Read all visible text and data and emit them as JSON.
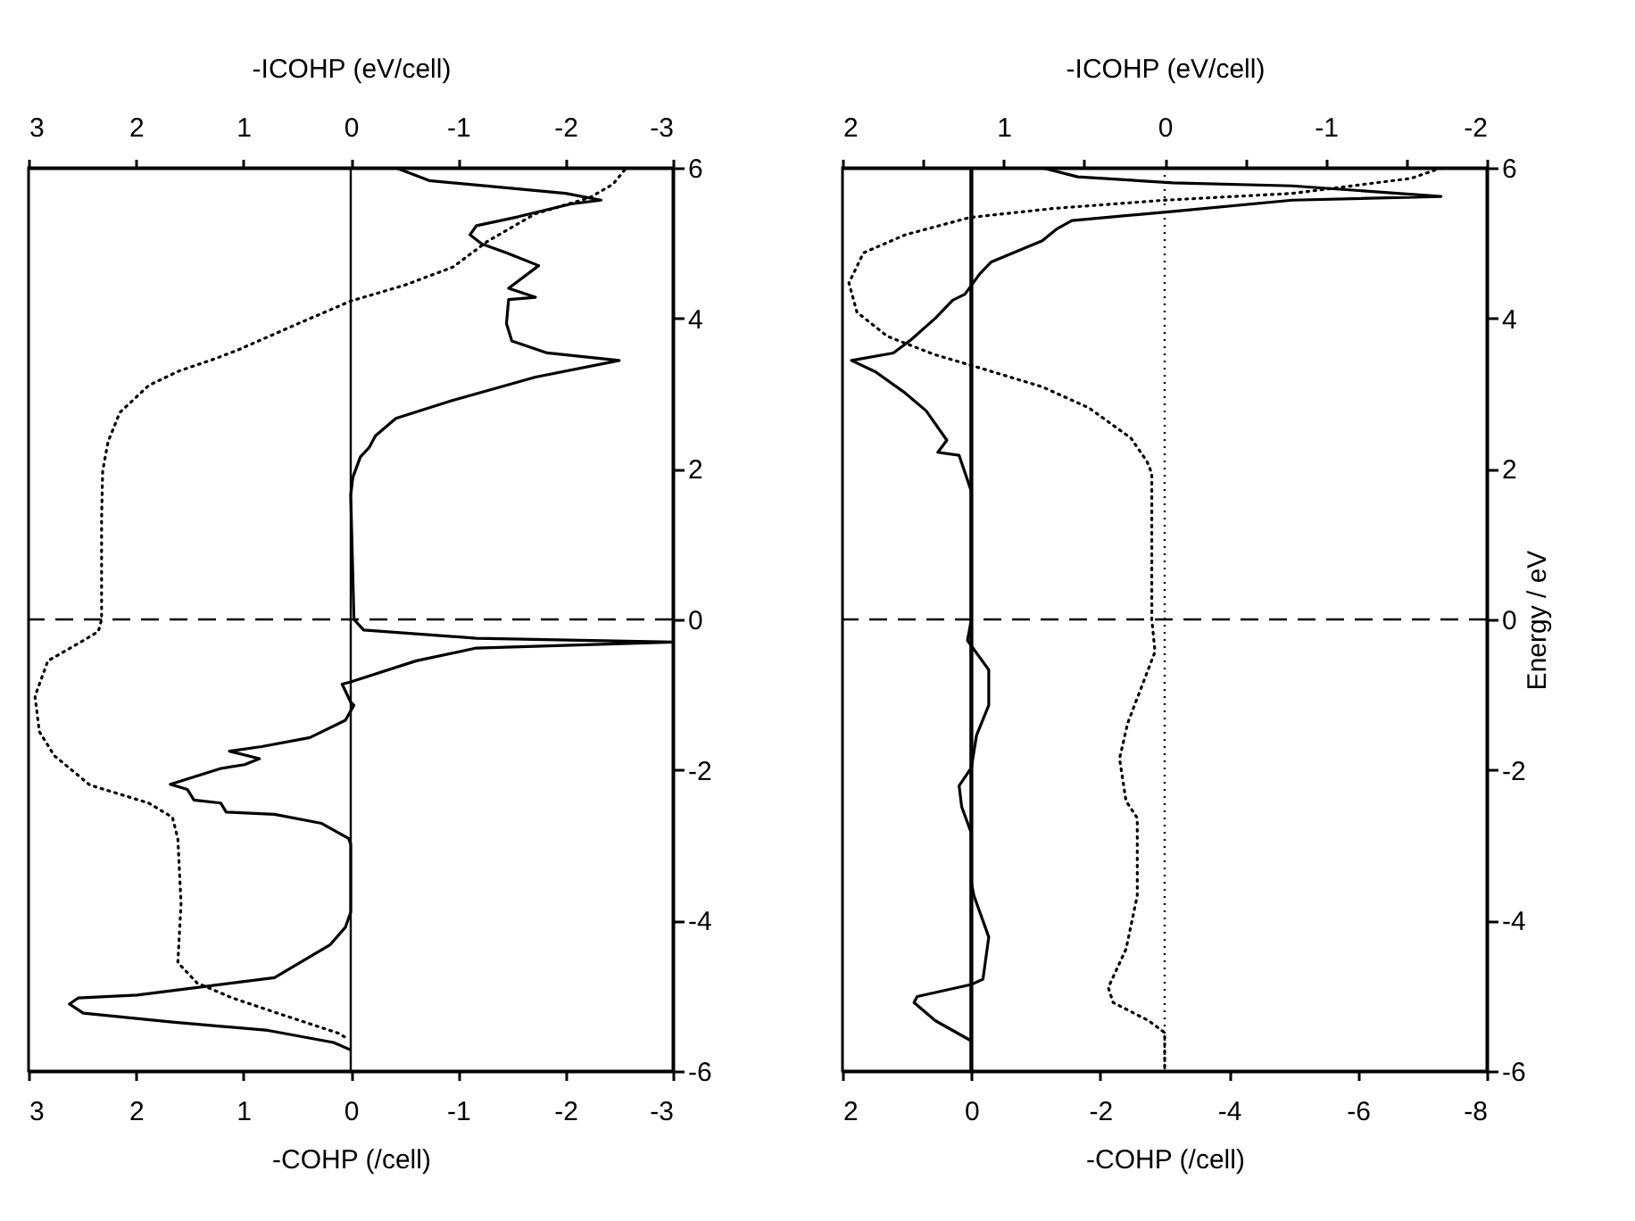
{
  "chart_data": [
    {
      "type": "line",
      "xlabel": "-COHP (/cell)",
      "x2label": "-ICOHP (eV/cell)",
      "xlim": [
        3,
        -3
      ],
      "xticks": [
        3,
        2,
        1,
        0,
        -1,
        -2,
        -3
      ],
      "x2lim": [
        3,
        -3
      ],
      "x2ticks": [
        3,
        2,
        1,
        0,
        -1,
        -2,
        -3
      ],
      "ylim": [
        -6,
        6
      ],
      "yticks": [
        -6,
        -4,
        -2,
        0,
        2,
        4,
        6
      ],
      "series": [
        {
          "color": "#000000",
          "line_style": "solid",
          "x": [
            -0.42,
            -0.73,
            -2.0,
            -2.33,
            -2.05,
            -1.56,
            -1.17,
            -1.11,
            -1.22,
            -1.45,
            -1.75,
            -1.47,
            -1.72,
            -1.47,
            -1.45,
            -1.5,
            -1.83,
            -2.5,
            -1.72,
            -0.95,
            -0.42,
            -0.23,
            -0.17,
            -0.09,
            -0.02,
            0,
            -0.03,
            -0.12,
            -1.17,
            -3.0,
            -1.17,
            -0.61,
            0,
            0.08,
            0,
            -0.03,
            0.05,
            0.38,
            0.83,
            1.13,
            0.85,
            0.99,
            1.21,
            1.68,
            1.52,
            1.46,
            1.21,
            1.16,
            0.71,
            0.27,
            0.02,
            0,
            0,
            0.05,
            0.19,
            0.71,
            1.43,
            1.99,
            2.54,
            2.62,
            2.49,
            1.66,
            0.77,
            0.16,
            0
          ],
          "values": [
            6.0,
            5.83,
            5.66,
            5.57,
            5.52,
            5.35,
            5.23,
            5.11,
            4.99,
            4.87,
            4.7,
            4.4,
            4.28,
            4.25,
            3.93,
            3.7,
            3.54,
            3.44,
            3.22,
            2.91,
            2.67,
            2.44,
            2.28,
            2.16,
            1.89,
            1.65,
            0,
            -0.14,
            -0.25,
            -0.3,
            -0.38,
            -0.55,
            -0.83,
            -0.86,
            -1.1,
            -1.14,
            -1.34,
            -1.57,
            -1.69,
            -1.75,
            -1.85,
            -1.93,
            -1.98,
            -2.19,
            -2.26,
            -2.4,
            -2.44,
            -2.56,
            -2.59,
            -2.71,
            -2.91,
            -2.99,
            -3.89,
            -4.09,
            -4.32,
            -4.76,
            -4.89,
            -4.99,
            -5.03,
            -5.11,
            -5.23,
            -5.35,
            -5.46,
            -5.62,
            -5.72
          ]
        },
        {
          "color": "#000000",
          "line_style": "dotted",
          "axis": "x2",
          "x": [
            -2.55,
            -2.44,
            -2.22,
            -1.72,
            -1.28,
            -0.95,
            -0.5,
            0,
            0.49,
            1.05,
            1.27,
            1.6,
            1.88,
            2.15,
            2.26,
            2.31,
            2.32,
            2.32,
            2.35,
            2.49,
            2.82,
            2.94,
            2.9,
            2.76,
            2.43,
            1.88,
            1.66,
            1.61,
            1.58,
            1.61,
            1.43,
            1.1,
            0.6,
            0.11,
            0.02
          ],
          "values": [
            5.97,
            5.78,
            5.6,
            5.39,
            5.03,
            4.68,
            4.44,
            4.23,
            3.93,
            3.58,
            3.46,
            3.3,
            3.11,
            2.75,
            2.36,
            1.97,
            1.34,
            0,
            -0.16,
            -0.28,
            -0.55,
            -1.02,
            -1.49,
            -1.81,
            -2.2,
            -2.44,
            -2.63,
            -2.91,
            -3.77,
            -4.56,
            -4.83,
            -5.03,
            -5.27,
            -5.5,
            -5.58
          ]
        }
      ],
      "ref_lines": [
        {
          "axis": "x",
          "value": 0,
          "line_style": "solid"
        },
        {
          "axis": "y",
          "value": 0,
          "line_style": "dashed"
        }
      ]
    },
    {
      "type": "line",
      "xlabel": "-COHP (/cell)",
      "x2label": "-ICOHP (eV/cell)",
      "ylabel": "Energy / eV",
      "xlim": [
        2,
        -8
      ],
      "xticks": [
        2,
        0,
        -2,
        -4,
        -6,
        -8
      ],
      "x2lim": [
        2,
        -2
      ],
      "x2ticks": [
        2,
        {
          "value": 1.5,
          "label": null
        },
        1,
        {
          "value": 0.5,
          "label": null
        },
        0,
        {
          "value": -0.5,
          "label": null
        },
        -1,
        {
          "value": -1.5,
          "label": null
        },
        -2
      ],
      "ylim": [
        -6,
        6
      ],
      "yticks": [
        -6,
        -4,
        -2,
        0,
        2,
        4,
        6
      ],
      "series": [
        {
          "color": "#000000",
          "line_style": "solid",
          "x": [
            -1.1,
            -1.65,
            -3.13,
            -4.98,
            -7.29,
            -4.98,
            -3.13,
            -1.56,
            -1.33,
            -1.1,
            -0.31,
            -0.13,
            0.1,
            0.29,
            0.56,
            0.93,
            1.21,
            1.86,
            1.49,
            1.03,
            0.7,
            0.38,
            0.52,
            0.19,
            0,
            0,
            0.06,
            -0.27,
            -0.27,
            -0.08,
            0,
            0.19,
            0.15,
            0,
            0,
            -0.04,
            -0.27,
            -0.18,
            0,
            0.84,
            0.89,
            0.56,
            0
          ],
          "values": [
            6.0,
            5.88,
            5.8,
            5.76,
            5.62,
            5.57,
            5.42,
            5.3,
            5.19,
            5.03,
            4.75,
            4.59,
            4.32,
            4.24,
            4.0,
            3.72,
            3.54,
            3.44,
            3.29,
            3.01,
            2.77,
            2.38,
            2.22,
            2.18,
            1.7,
            0,
            -0.28,
            -0.67,
            -1.14,
            -1.54,
            -1.97,
            -2.21,
            -2.49,
            -2.84,
            -3.5,
            -3.67,
            -4.22,
            -4.78,
            -4.85,
            -5.01,
            -5.09,
            -5.33,
            -5.6
          ]
        },
        {
          "color": "#000000",
          "line_style": "dotted",
          "axis": "x2",
          "x": [
            -1.72,
            -1.53,
            -0.79,
            0,
            0.69,
            1.21,
            1.61,
            1.87,
            1.96,
            1.91,
            1.72,
            1.43,
            1.13,
            0.76,
            0.47,
            0.21,
            0.11,
            0.08,
            0.08,
            0.06,
            0.23,
            0.28,
            0.24,
            0.17,
            0.17,
            0.24,
            0.35,
            0.32,
            0.1,
            0,
            0
          ],
          "values": [
            6.0,
            5.86,
            5.66,
            5.57,
            5.46,
            5.34,
            5.11,
            4.87,
            4.47,
            4.08,
            3.76,
            3.52,
            3.33,
            3.09,
            2.81,
            2.41,
            2.1,
            1.94,
            0,
            -0.43,
            -1.38,
            -1.85,
            -2.41,
            -2.64,
            -3.67,
            -4.38,
            -4.89,
            -5.09,
            -5.33,
            -5.49,
            -6
          ]
        }
      ],
      "ref_lines": [
        {
          "axis": "x",
          "value": 0,
          "line_style": "solid"
        },
        {
          "axis": "x2",
          "value": 0,
          "line_style": "dotted"
        },
        {
          "axis": "y",
          "value": 0,
          "line_style": "dashed"
        }
      ]
    }
  ]
}
